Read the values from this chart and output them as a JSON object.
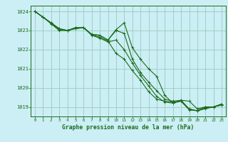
{
  "title": "Graphe pression niveau de la mer (hPa)",
  "background_color": "#cceef5",
  "grid_color": "#99ccbb",
  "line_color": "#1a6b1a",
  "xlim": [
    -0.5,
    23.5
  ],
  "ylim": [
    1018.5,
    1024.3
  ],
  "yticks": [
    1019,
    1020,
    1021,
    1022,
    1023,
    1024
  ],
  "xticks": [
    0,
    1,
    2,
    3,
    4,
    5,
    6,
    7,
    8,
    9,
    10,
    11,
    12,
    13,
    14,
    15,
    16,
    17,
    18,
    19,
    20,
    21,
    22,
    23
  ],
  "series": [
    [
      1024.0,
      1023.7,
      1023.4,
      1023.1,
      1023.0,
      1023.1,
      1023.15,
      1022.8,
      1022.75,
      1022.5,
      1023.05,
      1023.4,
      1022.1,
      1021.5,
      1021.0,
      1020.6,
      1019.6,
      1019.2,
      1019.35,
      1019.3,
      1018.9,
      1019.0,
      1019.0,
      1019.15
    ],
    [
      1024.0,
      1023.7,
      1023.4,
      1023.1,
      1023.0,
      1023.1,
      1023.15,
      1022.8,
      1022.75,
      1022.5,
      1023.0,
      1022.85,
      1021.5,
      1020.8,
      1020.3,
      1019.85,
      1019.4,
      1019.3,
      1019.35,
      1018.9,
      1018.8,
      1019.0,
      1019.0,
      1019.15
    ],
    [
      1024.0,
      1023.7,
      1023.38,
      1023.05,
      1023.0,
      1023.15,
      1023.15,
      1022.78,
      1022.65,
      1022.45,
      1021.8,
      1021.5,
      1020.9,
      1020.4,
      1019.8,
      1019.4,
      1019.3,
      1019.25,
      1019.3,
      1018.85,
      1018.8,
      1018.95,
      1019.0,
      1019.1
    ],
    [
      1024.0,
      1023.7,
      1023.35,
      1023.0,
      1023.0,
      1023.15,
      1023.15,
      1022.75,
      1022.6,
      1022.4,
      1022.5,
      1022.0,
      1021.3,
      1020.65,
      1020.1,
      1019.55,
      1019.25,
      1019.2,
      1019.3,
      1018.85,
      1018.8,
      1018.9,
      1019.0,
      1019.1
    ]
  ]
}
